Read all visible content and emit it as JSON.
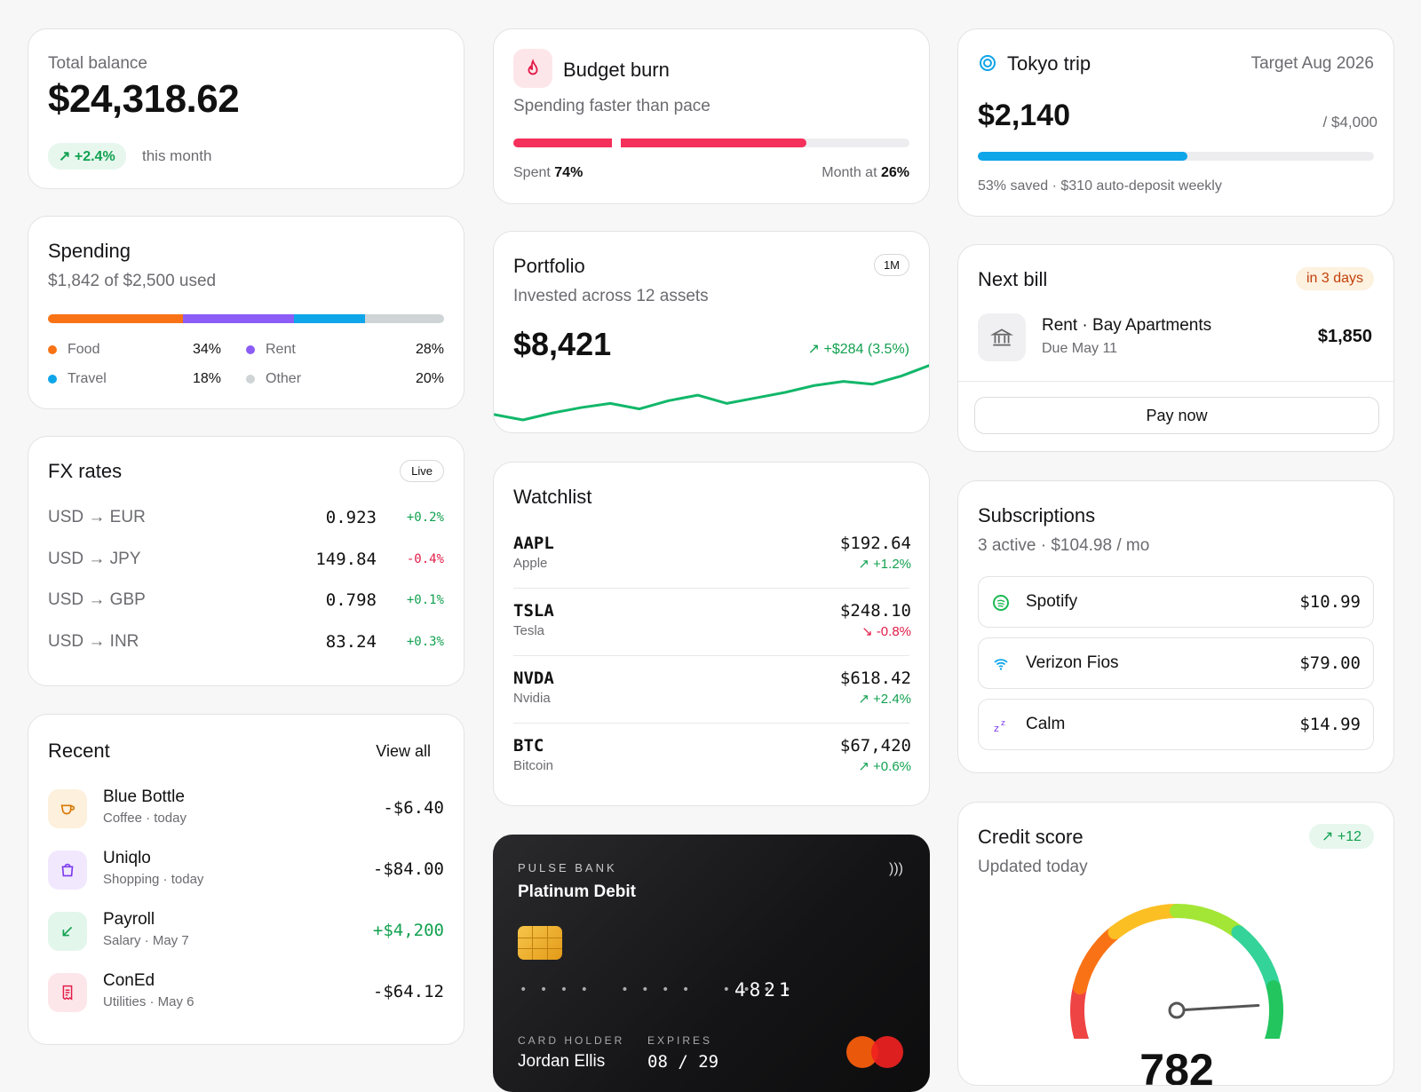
{
  "balance": {
    "label": "Total balance",
    "amount": "$24,318.62",
    "change": "+2.4%",
    "period": "this month"
  },
  "spending": {
    "title": "Spending",
    "summary": "$1,842 of $2,500 used",
    "categories": [
      {
        "name": "Food",
        "pct": "34%",
        "value": 34,
        "color": "#f97316"
      },
      {
        "name": "Rent",
        "pct": "28%",
        "value": 28,
        "color": "#8b5cf6"
      },
      {
        "name": "Travel",
        "pct": "18%",
        "value": 18,
        "color": "#0ea5e9"
      },
      {
        "name": "Other",
        "pct": "20%",
        "value": 20,
        "color": "#cfd4d6"
      }
    ]
  },
  "fx": {
    "title": "FX rates",
    "badge": "Live",
    "rows": [
      {
        "pair": "USD → EUR",
        "rate": "0.923",
        "change": "+0.2%",
        "dir": "up"
      },
      {
        "pair": "USD → JPY",
        "rate": "149.84",
        "change": "-0.4%",
        "dir": "down"
      },
      {
        "pair": "USD → GBP",
        "rate": "0.798",
        "change": "+0.1%",
        "dir": "up"
      },
      {
        "pair": "USD → INR",
        "rate": "83.24",
        "change": "+0.3%",
        "dir": "up"
      }
    ]
  },
  "recent": {
    "title": "Recent",
    "view_all": "View all",
    "items": [
      {
        "name": "Blue Bottle",
        "meta": "Coffee · today",
        "amount": "-$6.40",
        "icon": "coffee-icon"
      },
      {
        "name": "Uniqlo",
        "meta": "Shopping · today",
        "amount": "-$84.00",
        "icon": "shopping-bag-icon"
      },
      {
        "name": "Payroll",
        "meta": "Salary · May 7",
        "amount": "+$4,200",
        "icon": "arrow-down-left-icon"
      },
      {
        "name": "ConEd",
        "meta": "Utilities · May 6",
        "amount": "-$64.12",
        "icon": "receipt-icon"
      }
    ]
  },
  "budget": {
    "title": "Budget burn",
    "subtitle": "Spending faster than pace",
    "spent_label": "Spent",
    "spent": "74%",
    "spent_value": 74,
    "month_label": "Month at",
    "month": "26%",
    "month_value": 26
  },
  "portfolio": {
    "title": "Portfolio",
    "subtitle": "Invested across 12 assets",
    "range": "1M",
    "value": "$8,421",
    "change": "+$284 (3.5%)",
    "spark": [
      14,
      10,
      15,
      19,
      22,
      18,
      24,
      28,
      22,
      26,
      30,
      35,
      38,
      36,
      42,
      50
    ]
  },
  "watchlist": {
    "title": "Watchlist",
    "items": [
      {
        "ticker": "AAPL",
        "name": "Apple",
        "price": "$192.64",
        "change": "+1.2%",
        "dir": "up"
      },
      {
        "ticker": "TSLA",
        "name": "Tesla",
        "price": "$248.10",
        "change": "-0.8%",
        "dir": "down"
      },
      {
        "ticker": "NVDA",
        "name": "Nvidia",
        "price": "$618.42",
        "change": "+2.4%",
        "dir": "up"
      },
      {
        "ticker": "BTC",
        "name": "Bitcoin",
        "price": "$67,420",
        "change": "+0.6%",
        "dir": "up"
      }
    ]
  },
  "card": {
    "bank": "PULSE BANK",
    "type": "Platinum Debit",
    "masked": "• • • •   • • • •   • • • •",
    "last4": "4821",
    "holder_label": "CARD HOLDER",
    "holder": "Jordan Ellis",
    "expires_label": "EXPIRES",
    "expires": "08 / 29"
  },
  "goal": {
    "title": "Tokyo trip",
    "target": "Target Aug 2026",
    "saved": "$2,140",
    "total": "/ $4,000",
    "progress": 53,
    "note": "53% saved · $310 auto-deposit weekly"
  },
  "bill": {
    "title": "Next bill",
    "due_badge": "in 3 days",
    "name": "Rent · Bay Apartments",
    "due": "Due May 11",
    "amount": "$1,850",
    "action": "Pay now"
  },
  "subs": {
    "title": "Subscriptions",
    "summary": "3 active · $104.98 / mo",
    "items": [
      {
        "name": "Spotify",
        "price": "$10.99",
        "icon": "spotify-icon",
        "color": "#1db954"
      },
      {
        "name": "Verizon Fios",
        "price": "$79.00",
        "icon": "wifi-icon",
        "color": "#0ea5e9"
      },
      {
        "name": "Calm",
        "price": "$14.99",
        "icon": "sleep-icon",
        "color": "#7c3aed"
      }
    ]
  },
  "credit": {
    "title": "Credit score",
    "subtitle": "Updated today",
    "change": "+12",
    "score": "782",
    "score_value": 782,
    "min": 300,
    "max": 850
  }
}
